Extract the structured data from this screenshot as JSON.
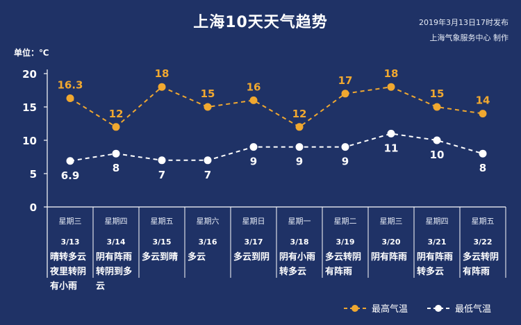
{
  "header": {
    "title": "上海10天天气趋势",
    "publish_time": "2019年3月13日17时发布",
    "publisher": "上海气象服务中心  制作"
  },
  "chart_data": {
    "type": "line",
    "unit_label": "单位：℃",
    "ylim": [
      0,
      20
    ],
    "yticks": [
      0,
      5,
      10,
      15,
      20
    ],
    "grid": false,
    "legend_position": "bottom-right",
    "colors": {
      "background": "#1f3266",
      "high": "#f0a830",
      "low": "#ffffff",
      "axis": "#ffffff"
    },
    "categories": [
      "3/13",
      "3/14",
      "3/15",
      "3/16",
      "3/17",
      "3/18",
      "3/19",
      "3/20",
      "3/21",
      "3/22"
    ],
    "weekdays": [
      "星期三",
      "星期四",
      "星期五",
      "星期六",
      "星期日",
      "星期一",
      "星期二",
      "星期三",
      "星期四",
      "星期五"
    ],
    "descriptions": [
      [
        "晴转多云",
        "夜里转阴",
        "有小雨"
      ],
      [
        "阴有阵雨",
        "转阴到多",
        "云"
      ],
      [
        "多云到晴"
      ],
      [
        "多云"
      ],
      [
        "多云到阴"
      ],
      [
        "阴有小雨",
        "转多云"
      ],
      [
        "多云转阴",
        "有阵雨"
      ],
      [
        "阴有阵雨"
      ],
      [
        "阴有阵雨",
        "转多云"
      ],
      [
        "多云转阴",
        "有阵雨"
      ]
    ],
    "series": [
      {
        "name": "最高气温",
        "values": [
          16.3,
          12,
          18,
          15,
          16,
          12,
          17,
          18,
          15,
          14
        ],
        "labels": [
          "16.3",
          "12",
          "18",
          "15",
          "16",
          "12",
          "17",
          "18",
          "15",
          "14"
        ]
      },
      {
        "name": "最低气温",
        "values": [
          6.9,
          8,
          7,
          7,
          9,
          9,
          9,
          11,
          10,
          8
        ],
        "labels": [
          "6.9",
          "8",
          "7",
          "7",
          "9",
          "9",
          "9",
          "11",
          "10",
          "8"
        ]
      }
    ]
  }
}
